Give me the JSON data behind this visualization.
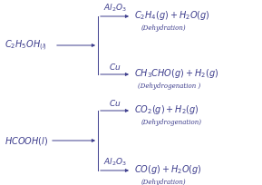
{
  "background_color": "#ffffff",
  "text_color": "#3c3c8c",
  "font_style": "italic",
  "reactant1": "$C_2H_5OH_{(l)}$",
  "reactant2": "$HCOOH(l)$",
  "catalyst1_top": "$Al_2O_3$",
  "catalyst1_bot": "$Cu$",
  "catalyst2_top": "$Cu$",
  "catalyst2_bot": "$Al_2O_3$",
  "product1": "$C_2H_4(g)+H_2O(g)$",
  "product1_sub": "(Dehydration)",
  "product2": "$CH_3CHO(g)+H_2(g)$",
  "product2_sub": "(Dehydrogenation )",
  "product3": "$CO_2(g)+H_2(g)$",
  "product3_sub": "(Dehydrogenation)",
  "product4": "$CO(g)+H_2O(g)$",
  "product4_sub": "(Dehydration)",
  "figsize": [
    2.89,
    2.04
  ],
  "dpi": 100
}
